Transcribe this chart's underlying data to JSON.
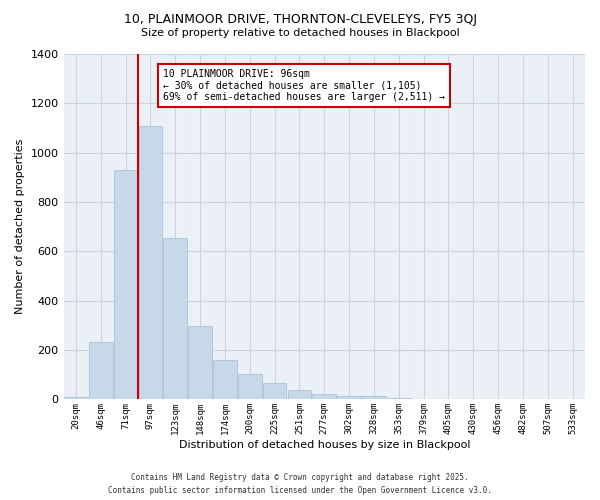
{
  "title": "10, PLAINMOOR DRIVE, THORNTON-CLEVELEYS, FY5 3QJ",
  "subtitle": "Size of property relative to detached houses in Blackpool",
  "xlabel": "Distribution of detached houses by size in Blackpool",
  "ylabel": "Number of detached properties",
  "bar_color": "#c8d8eb",
  "bar_edge_color": "#a8c4d8",
  "background_color": "#ffffff",
  "plot_bg_color": "#eaf0f6",
  "grid_color": "#c8d4de",
  "categories": [
    "20sqm",
    "46sqm",
    "71sqm",
    "97sqm",
    "123sqm",
    "148sqm",
    "174sqm",
    "200sqm",
    "225sqm",
    "251sqm",
    "277sqm",
    "302sqm",
    "328sqm",
    "353sqm",
    "379sqm",
    "405sqm",
    "430sqm",
    "456sqm",
    "482sqm",
    "507sqm",
    "533sqm"
  ],
  "values": [
    10,
    234,
    930,
    1110,
    655,
    298,
    160,
    105,
    68,
    40,
    20,
    13,
    15,
    5,
    2,
    0,
    0,
    0,
    0,
    0,
    2
  ],
  "ylim": [
    0,
    1400
  ],
  "yticks": [
    0,
    200,
    400,
    600,
    800,
    1000,
    1200,
    1400
  ],
  "vline_index": 3,
  "vline_color": "#cc0000",
  "annotation_title": "10 PLAINMOOR DRIVE: 96sqm",
  "annotation_line1": "← 30% of detached houses are smaller (1,105)",
  "annotation_line2": "69% of semi-detached houses are larger (2,511) →",
  "annotation_box_color": "#ffffff",
  "annotation_box_edge": "#cc0000",
  "footer_line1": "Contains HM Land Registry data © Crown copyright and database right 2025.",
  "footer_line2": "Contains public sector information licensed under the Open Government Licence v3.0."
}
